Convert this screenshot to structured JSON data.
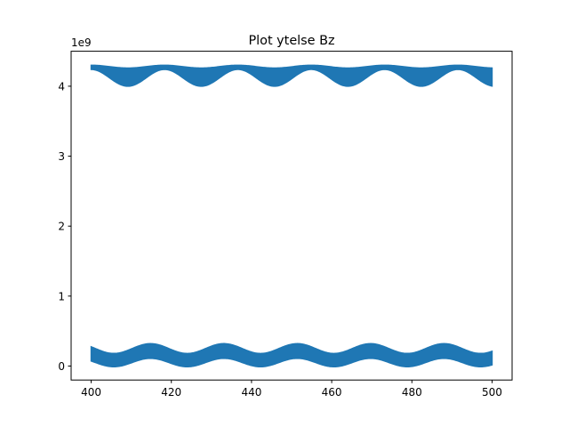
{
  "chart_data": {
    "type": "area",
    "title": "Plot ytelse Bz",
    "xlabel": "",
    "ylabel": "",
    "y_offset_label": "1e9",
    "xlim": [
      395,
      505
    ],
    "ylim": [
      -0.2,
      4.5
    ],
    "x_ticks": [
      400,
      420,
      440,
      460,
      480,
      500
    ],
    "y_ticks": [
      0,
      1,
      2,
      3,
      4
    ],
    "grid": false,
    "color": "#1f77b4",
    "x_range": [
      400,
      500
    ],
    "series": [
      {
        "band": "upper",
        "top": {
          "base": 4.28,
          "amp": 0.02,
          "period": 18.3,
          "phase": 0
        },
        "bottom": {
          "base": 4.12,
          "amp": 0.12,
          "period": 18.3,
          "phase": 0
        }
      },
      {
        "band": "lower",
        "top": {
          "base": 0.25,
          "amp": 0.07,
          "period": 18.3,
          "phase": 1.2
        },
        "bottom": {
          "base": 0.05,
          "amp": 0.06,
          "period": 18.3,
          "phase": 1.2
        }
      }
    ]
  }
}
